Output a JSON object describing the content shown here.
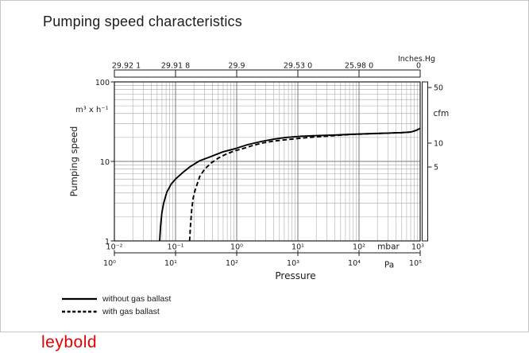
{
  "title": "Pumping speed characteristics",
  "logo": "leybold",
  "legend": [
    {
      "style": "solid",
      "label": "without gas ballast"
    },
    {
      "style": "dashed",
      "label": "with gas ballast"
    }
  ],
  "chart_data": {
    "type": "line",
    "title": "Pumping speed characteristics",
    "x_axis": {
      "scale": "log",
      "label": "Pressure",
      "unit_primary": "mbar",
      "unit_secondary": "Pa",
      "range_mbar": [
        0.01,
        1000
      ],
      "range_pa": [
        1,
        100000
      ],
      "ticks_mbar": [
        "10⁻²",
        "10⁻¹",
        "10⁰",
        "10¹",
        "10²",
        "10³"
      ],
      "ticks_pa": [
        "10⁰",
        "10¹",
        "10²",
        "10³",
        "10⁴",
        "10⁵"
      ]
    },
    "top_axis": {
      "unit": "Inches.Hg",
      "ticks": [
        "29.92 1",
        "29.91 8",
        "29.9",
        "29.53 0",
        "25.98 0",
        "0"
      ]
    },
    "y_axis": {
      "scale": "log",
      "label": "Pumping speed",
      "unit": "m³ x h⁻¹",
      "range": [
        1,
        100
      ],
      "ticks": [
        {
          "label": "1",
          "value": 1
        },
        {
          "label": "10",
          "value": 10
        },
        {
          "label": "100",
          "value": 100
        }
      ]
    },
    "y2_axis": {
      "unit": "cfm",
      "ticks": [
        {
          "label": "50",
          "value_m3h": 84.95
        },
        {
          "label": "10",
          "value_m3h": 16.99
        },
        {
          "label": "5",
          "value_m3h": 8.5
        }
      ]
    },
    "grid": "log-log minor gridlines on",
    "series": [
      {
        "name": "without gas ballast",
        "style": "solid",
        "points_mbar_m3h": [
          [
            0.055,
            1
          ],
          [
            0.057,
            1.55
          ],
          [
            0.06,
            2.3
          ],
          [
            0.064,
            3.0
          ],
          [
            0.072,
            4.1
          ],
          [
            0.085,
            5.2
          ],
          [
            0.1,
            6.0
          ],
          [
            0.13,
            7.2
          ],
          [
            0.17,
            8.5
          ],
          [
            0.25,
            10.2
          ],
          [
            0.38,
            11.5
          ],
          [
            0.6,
            13.2
          ],
          [
            0.95,
            14.5
          ],
          [
            1.5,
            16.2
          ],
          [
            2.5,
            17.8
          ],
          [
            4.0,
            19.0
          ],
          [
            6.3,
            20.0
          ],
          [
            11,
            20.7
          ],
          [
            20,
            21.1
          ],
          [
            37,
            21.4
          ],
          [
            70,
            21.9
          ],
          [
            170,
            22.4
          ],
          [
            300,
            22.7
          ],
          [
            500,
            23.0
          ],
          [
            700,
            23.4
          ],
          [
            850,
            24.5
          ],
          [
            1000,
            26.0
          ]
        ]
      },
      {
        "name": "with gas ballast",
        "style": "dashed",
        "points_mbar_m3h": [
          [
            0.17,
            1
          ],
          [
            0.176,
            1.6
          ],
          [
            0.184,
            2.5
          ],
          [
            0.195,
            3.5
          ],
          [
            0.21,
            4.4
          ],
          [
            0.25,
            6.5
          ],
          [
            0.3,
            8.0
          ],
          [
            0.38,
            9.5
          ],
          [
            0.5,
            11.0
          ],
          [
            0.65,
            12.2
          ],
          [
            0.9,
            13.5
          ],
          [
            1.3,
            14.6
          ],
          [
            1.9,
            16.0
          ],
          [
            2.6,
            17.0
          ],
          [
            4.0,
            18.0
          ],
          [
            6.3,
            18.7
          ],
          [
            10,
            19.4
          ],
          [
            15,
            20.0
          ],
          [
            25,
            20.6
          ],
          [
            40,
            21.1
          ],
          [
            70,
            21.8
          ],
          [
            170,
            22.4
          ],
          [
            300,
            22.7
          ],
          [
            500,
            23.0
          ],
          [
            700,
            23.4
          ],
          [
            850,
            24.5
          ],
          [
            1000,
            26.0
          ]
        ]
      }
    ]
  }
}
